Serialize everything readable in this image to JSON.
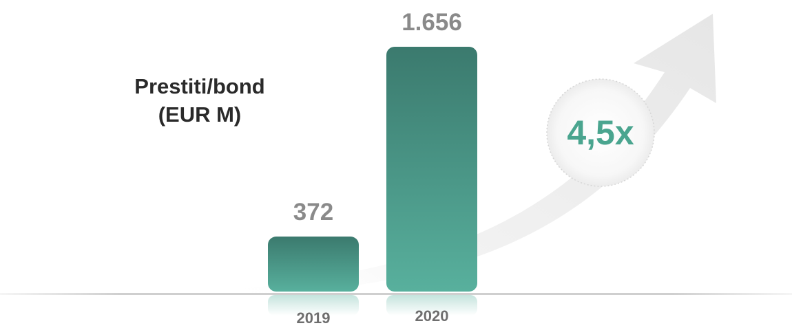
{
  "chart_data": {
    "type": "bar",
    "title": "Prestiti/bond",
    "subtitle": "(EUR M)",
    "categories": [
      "2019",
      "2020"
    ],
    "values": [
      372,
      1656
    ],
    "value_labels": [
      "372",
      "1.656"
    ],
    "ylim": [
      0,
      1656
    ],
    "grid": false,
    "legend": "none",
    "multiplier_label": "4,5x"
  },
  "colors": {
    "bar_top": "#3b7a6e",
    "bar_bottom": "#58b09d",
    "value_label": "#8a8a8a",
    "category_label": "#6e6e6e",
    "title": "#2a2a2a",
    "multiplier": "#4aa58f",
    "baseline": "#cfcfcf"
  }
}
